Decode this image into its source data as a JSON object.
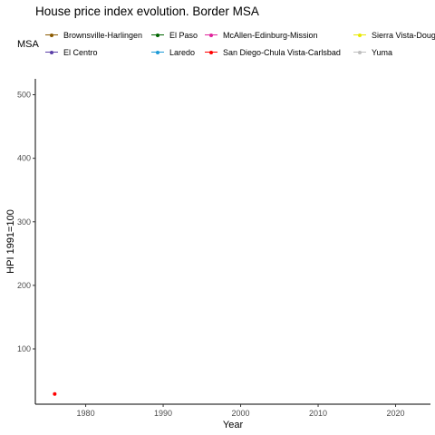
{
  "chart_data": {
    "type": "line",
    "title": "House price index evolution. Border MSA",
    "xlabel": "Year",
    "ylabel": "HPI 1991=100",
    "xlim": [
      1973.5,
      2024.5
    ],
    "ylim": [
      13,
      525
    ],
    "x_ticks": [
      1980,
      1990,
      2000,
      2010,
      2020
    ],
    "y_ticks": [
      100,
      200,
      300,
      400,
      500
    ],
    "grid": false,
    "legend_title": "MSA",
    "legend_position": "top",
    "series": [
      {
        "name": "Brownsville-Harlingen",
        "color": "#8B5A00",
        "points": []
      },
      {
        "name": "El Centro",
        "color": "#5B3FA8",
        "points": []
      },
      {
        "name": "El Paso",
        "color": "#006400",
        "points": []
      },
      {
        "name": "Laredo",
        "color": "#1E9BD7",
        "points": []
      },
      {
        "name": "McAllen-Edinburg-Mission",
        "color": "#E0219B",
        "points": []
      },
      {
        "name": "San Diego-Chula Vista-Carlsbad",
        "color": "#FF0000",
        "points": [
          {
            "x": 1976,
            "y": 29
          }
        ]
      },
      {
        "name": "Sierra Vista-Doug",
        "color": "#E8E800",
        "points": []
      },
      {
        "name": "Yuma",
        "color": "#BEBEBE",
        "points": []
      }
    ]
  }
}
